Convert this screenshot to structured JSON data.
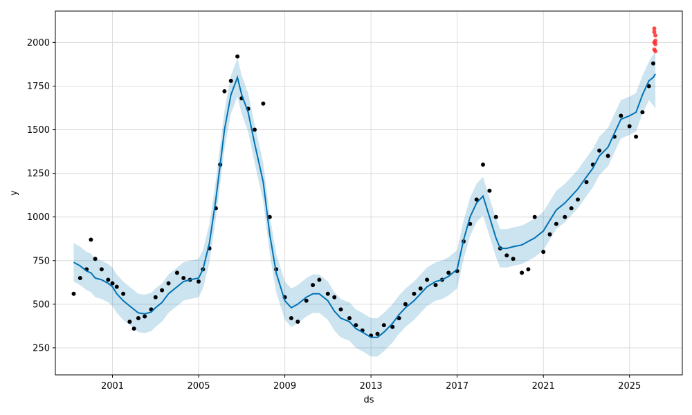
{
  "chart_data": {
    "type": "scatter",
    "xlabel": "ds",
    "ylabel": "y",
    "x_ticks": [
      "2001",
      "2005",
      "2009",
      "2013",
      "2017",
      "2021",
      "2025"
    ],
    "y_ticks": [
      250,
      500,
      750,
      1000,
      1250,
      1500,
      1750,
      2000
    ],
    "xlim": [
      1998.35,
      2027.45
    ],
    "ylim": [
      95,
      2180
    ],
    "grid": true,
    "colors": {
      "observed": "#000000",
      "forecast_line": "#0072B2",
      "uncertainty": "#0072B2",
      "test_points": "#ff2a2a"
    },
    "series": [
      {
        "role": "observed",
        "x": [
          1999.2,
          1999.5,
          1999.8,
          2000.0,
          2000.2,
          2000.5,
          2000.8,
          2001.0,
          2001.2,
          2001.5,
          2001.8,
          2002.0,
          2002.2,
          2002.5,
          2002.8,
          2003.0,
          2003.3,
          2003.6,
          2004.0,
          2004.3,
          2004.6,
          2005.0,
          2005.2,
          2005.5,
          2005.8,
          2006.0,
          2006.2,
          2006.5,
          2006.8,
          2007.0,
          2007.3,
          2007.6,
          2008.0,
          2008.3,
          2008.6,
          2009.0,
          2009.3,
          2009.6,
          2010.0,
          2010.3,
          2010.6,
          2011.0,
          2011.3,
          2011.6,
          2012.0,
          2012.3,
          2012.6,
          2013.0,
          2013.3,
          2013.6,
          2014.0,
          2014.3,
          2014.6,
          2015.0,
          2015.3,
          2015.6,
          2016.0,
          2016.3,
          2016.6,
          2017.0,
          2017.3,
          2017.6,
          2017.9,
          2018.2,
          2018.5,
          2018.8,
          2019.0,
          2019.3,
          2019.6,
          2020.0,
          2020.3,
          2020.6,
          2021.0,
          2021.3,
          2021.6,
          2022.0,
          2022.3,
          2022.6,
          2023.0,
          2023.3,
          2023.6,
          2024.0,
          2024.3,
          2024.6,
          2025.0,
          2025.3,
          2025.6,
          2025.9,
          2026.1
        ],
        "y": [
          560,
          650,
          700,
          870,
          760,
          700,
          640,
          620,
          600,
          560,
          400,
          360,
          420,
          430,
          470,
          540,
          580,
          620,
          680,
          650,
          640,
          630,
          700,
          820,
          1050,
          1300,
          1720,
          1780,
          1920,
          1680,
          1620,
          1500,
          1650,
          1000,
          700,
          540,
          420,
          400,
          520,
          610,
          640,
          560,
          540,
          470,
          420,
          380,
          350,
          320,
          330,
          380,
          370,
          420,
          500,
          560,
          590,
          640,
          610,
          640,
          680,
          690,
          860,
          960,
          1100,
          1300,
          1150,
          1000,
          820,
          780,
          760,
          680,
          700,
          1000,
          800,
          900,
          960,
          1000,
          1050,
          1100,
          1200,
          1300,
          1380,
          1350,
          1460,
          1580,
          1520,
          1460,
          1600,
          1750,
          1880
        ]
      },
      {
        "role": "test_points",
        "x": [
          2026.15,
          2026.15,
          2026.2,
          2026.2,
          2026.15,
          2026.2,
          2026.15,
          2026.2
        ],
        "y": [
          2080,
          2060,
          2040,
          2010,
          2000,
          1990,
          1960,
          1950
        ]
      },
      {
        "role": "forecast_line",
        "x": [
          1999.2,
          1999.5,
          1999.8,
          2000.0,
          2000.2,
          2000.5,
          2000.8,
          2001.0,
          2001.2,
          2001.5,
          2001.8,
          2002.0,
          2002.2,
          2002.5,
          2002.8,
          2003.0,
          2003.3,
          2003.6,
          2004.0,
          2004.3,
          2004.6,
          2005.0,
          2005.2,
          2005.5,
          2005.8,
          2006.0,
          2006.2,
          2006.5,
          2006.8,
          2007.0,
          2007.3,
          2007.6,
          2008.0,
          2008.3,
          2008.6,
          2009.0,
          2009.3,
          2009.6,
          2010.0,
          2010.3,
          2010.6,
          2011.0,
          2011.3,
          2011.6,
          2012.0,
          2012.3,
          2012.6,
          2013.0,
          2013.3,
          2013.6,
          2014.0,
          2014.3,
          2014.6,
          2015.0,
          2015.3,
          2015.6,
          2016.0,
          2016.3,
          2016.6,
          2017.0,
          2017.3,
          2017.6,
          2017.9,
          2018.2,
          2018.5,
          2018.8,
          2019.0,
          2019.3,
          2019.6,
          2020.0,
          2020.3,
          2020.6,
          2021.0,
          2021.3,
          2021.6,
          2022.0,
          2022.3,
          2022.6,
          2023.0,
          2023.3,
          2023.6,
          2024.0,
          2024.3,
          2024.6,
          2025.0,
          2025.3,
          2025.6,
          2025.9,
          2026.1,
          2026.2
        ],
        "y": [
          740,
          720,
          690,
          680,
          650,
          640,
          620,
          600,
          560,
          520,
          490,
          470,
          450,
          445,
          455,
          480,
          510,
          560,
          600,
          630,
          640,
          650,
          700,
          850,
          1100,
          1300,
          1500,
          1700,
          1800,
          1700,
          1600,
          1420,
          1200,
          900,
          680,
          520,
          480,
          500,
          540,
          560,
          560,
          520,
          460,
          420,
          400,
          360,
          340,
          310,
          310,
          340,
          390,
          440,
          480,
          520,
          560,
          600,
          630,
          640,
          660,
          700,
          870,
          1000,
          1080,
          1120,
          1000,
          880,
          820,
          820,
          830,
          840,
          860,
          880,
          920,
          980,
          1040,
          1080,
          1120,
          1160,
          1230,
          1280,
          1350,
          1400,
          1480,
          1560,
          1580,
          1600,
          1700,
          1780,
          1800,
          1820
        ]
      },
      {
        "role": "uncertainty_band",
        "x": [
          1999.2,
          1999.5,
          1999.8,
          2000.0,
          2000.2,
          2000.5,
          2000.8,
          2001.0,
          2001.2,
          2001.5,
          2001.8,
          2002.0,
          2002.2,
          2002.5,
          2002.8,
          2003.0,
          2003.3,
          2003.6,
          2004.0,
          2004.3,
          2004.6,
          2005.0,
          2005.2,
          2005.5,
          2005.8,
          2006.0,
          2006.2,
          2006.5,
          2006.8,
          2007.0,
          2007.3,
          2007.6,
          2008.0,
          2008.3,
          2008.6,
          2009.0,
          2009.3,
          2009.6,
          2010.0,
          2010.3,
          2010.6,
          2011.0,
          2011.3,
          2011.6,
          2012.0,
          2012.3,
          2012.6,
          2013.0,
          2013.3,
          2013.6,
          2014.0,
          2014.3,
          2014.6,
          2015.0,
          2015.3,
          2015.6,
          2016.0,
          2016.3,
          2016.6,
          2017.0,
          2017.3,
          2017.6,
          2017.9,
          2018.2,
          2018.5,
          2018.8,
          2019.0,
          2019.3,
          2019.6,
          2020.0,
          2020.3,
          2020.6,
          2021.0,
          2021.3,
          2021.6,
          2022.0,
          2022.3,
          2022.6,
          2023.0,
          2023.3,
          2023.6,
          2024.0,
          2024.3,
          2024.6,
          2025.0,
          2025.3,
          2025.6,
          2025.9,
          2026.1,
          2026.2
        ],
        "lower": [
          630,
          610,
          580,
          570,
          540,
          530,
          510,
          490,
          450,
          410,
          380,
          360,
          340,
          335,
          345,
          370,
          400,
          450,
          490,
          520,
          530,
          540,
          590,
          740,
          990,
          1190,
          1390,
          1590,
          1690,
          1590,
          1490,
          1310,
          1090,
          790,
          570,
          410,
          370,
          390,
          430,
          450,
          450,
          410,
          350,
          310,
          290,
          250,
          230,
          200,
          200,
          230,
          280,
          330,
          370,
          410,
          450,
          490,
          520,
          530,
          550,
          590,
          760,
          890,
          970,
          1010,
          890,
          770,
          710,
          710,
          720,
          730,
          750,
          770,
          810,
          870,
          930,
          970,
          1010,
          1050,
          1120,
          1170,
          1240,
          1290,
          1370,
          1450,
          1470,
          1490,
          1590,
          1670,
          1640,
          1620
        ],
        "upper": [
          850,
          830,
          800,
          790,
          760,
          750,
          730,
          710,
          670,
          630,
          600,
          580,
          560,
          555,
          565,
          590,
          620,
          670,
          710,
          740,
          750,
          760,
          810,
          960,
          1210,
          1410,
          1610,
          1810,
          1910,
          1810,
          1710,
          1530,
          1310,
          1010,
          790,
          630,
          590,
          610,
          650,
          670,
          670,
          630,
          570,
          530,
          510,
          470,
          450,
          420,
          420,
          450,
          500,
          550,
          590,
          630,
          670,
          710,
          740,
          750,
          770,
          810,
          980,
          1110,
          1190,
          1230,
          1110,
          990,
          930,
          930,
          940,
          950,
          970,
          990,
          1030,
          1090,
          1150,
          1190,
          1230,
          1270,
          1340,
          1390,
          1460,
          1510,
          1590,
          1670,
          1690,
          1710,
          1810,
          1890,
          1930,
          1950
        ]
      }
    ]
  }
}
